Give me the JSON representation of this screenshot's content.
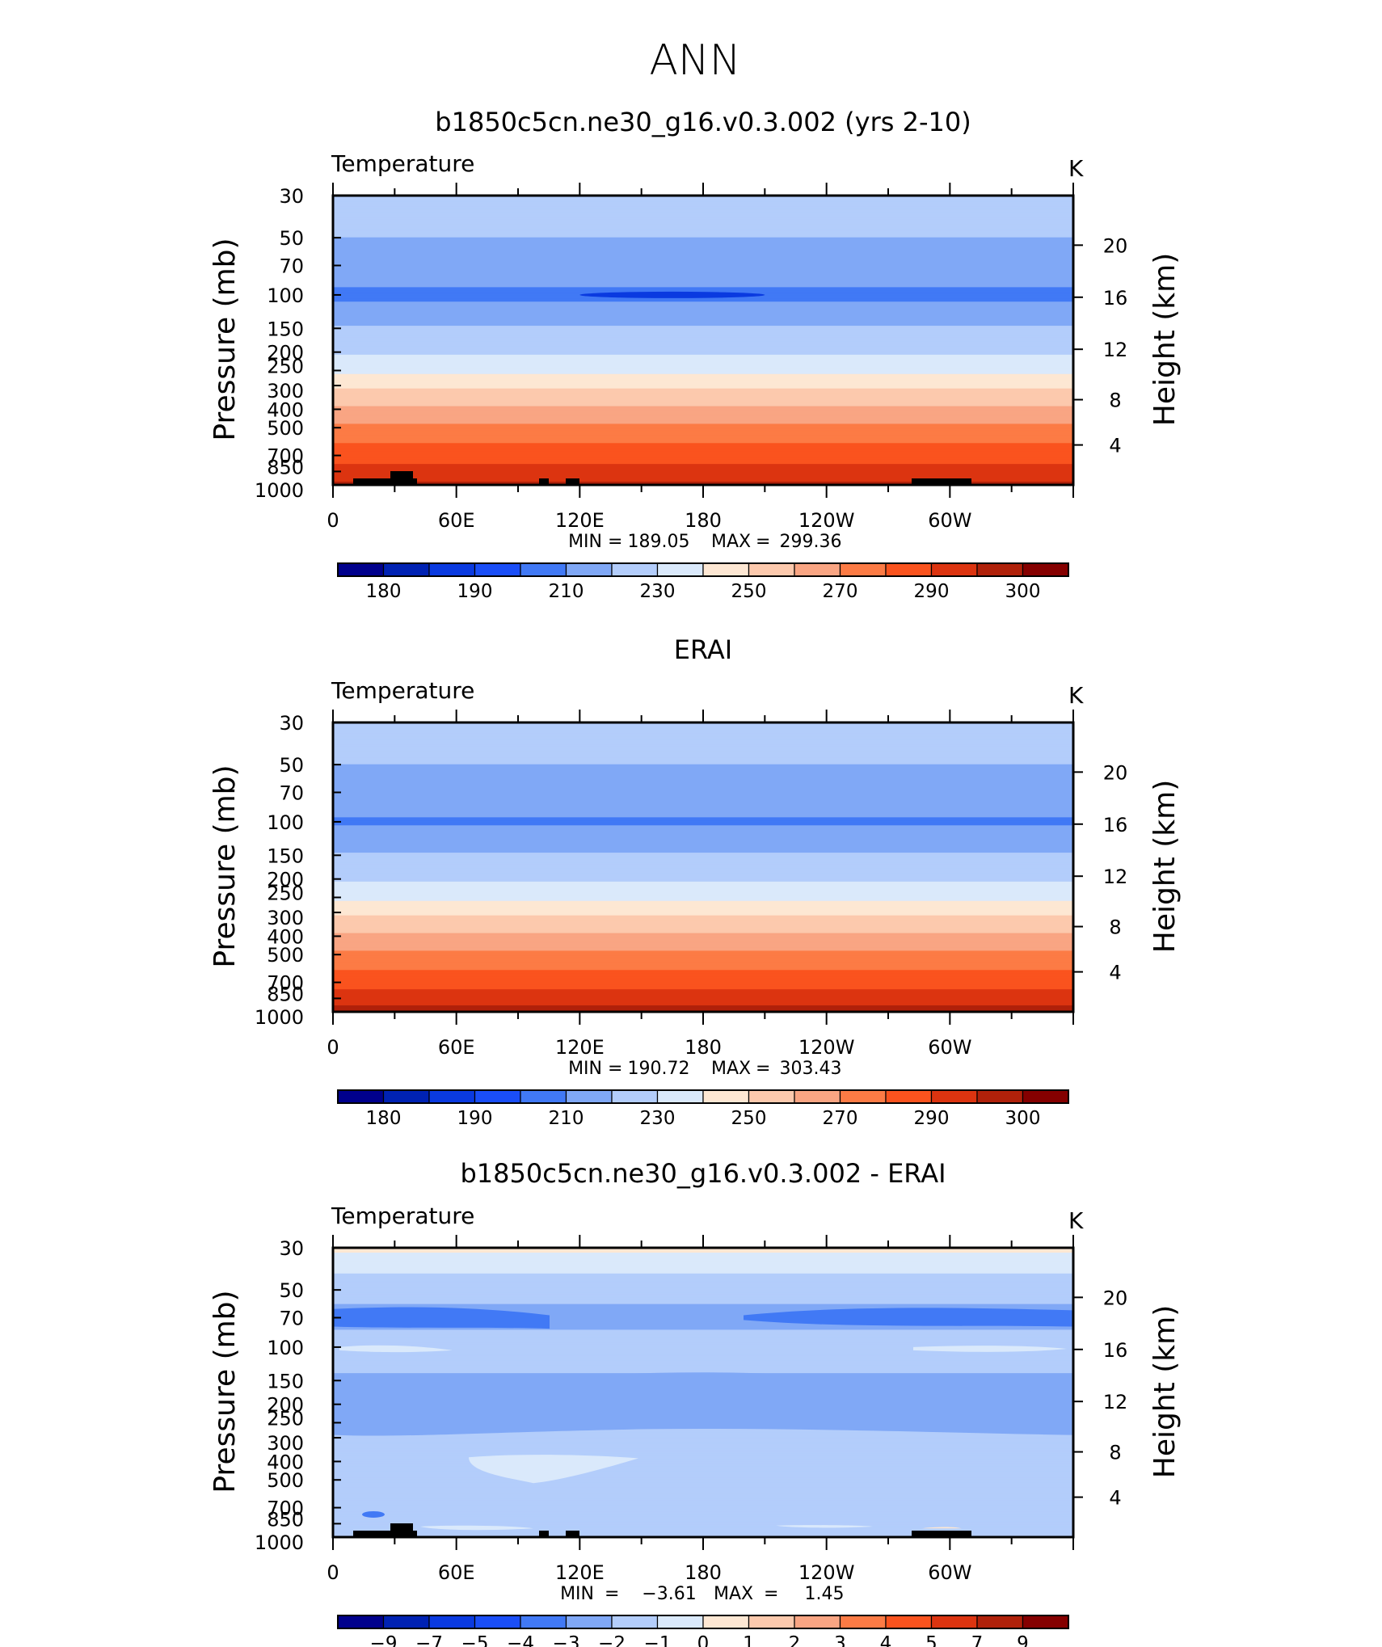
{
  "figure": {
    "title": "ANN"
  },
  "colors": {
    "temperature_palette": [
      "#00008c",
      "#0022b3",
      "#0a3ae0",
      "#1a4ef7",
      "#4179f5",
      "#80a8f6",
      "#b3cdfb",
      "#dae9fb",
      "#fde7d3",
      "#fcc9ad",
      "#f9a583",
      "#fc7b45",
      "#fa531e",
      "#dc3410",
      "#b0210a",
      "#850000"
    ],
    "difference_palette": [
      "#00008c",
      "#0022b3",
      "#0a3ae0",
      "#1a4ef7",
      "#4179f5",
      "#80a8f6",
      "#b3cdfb",
      "#dae9fb",
      "#fde7d3",
      "#fcc9ad",
      "#f9a583",
      "#fc7b45",
      "#fa531e",
      "#dc3410",
      "#b0210a",
      "#850000"
    ],
    "topography": "#000000"
  },
  "chart_data": [
    {
      "type": "heatmap",
      "subtitle": "b1850c5cn.ne30_g16.v0.3.002 (yrs 2-10)",
      "left_string": "Temperature",
      "right_string": "K",
      "ylabel": "Pressure (mb)",
      "ylabel_right": "Height (km)",
      "y_scale": "log",
      "x_ticks": [
        "0",
        "60E",
        "120E",
        "180",
        "120W",
        "60W"
      ],
      "y_ticks": [
        "30",
        "50",
        "70",
        "100",
        "150",
        "200",
        "250",
        "300",
        "400",
        "500",
        "700",
        "850",
        "1000"
      ],
      "y_right_ticks": [
        "20",
        "16",
        "12",
        "8",
        "4"
      ],
      "stats": {
        "min_label": "MIN",
        "min": "189.05",
        "max_label": "MAX",
        "max": "299.36"
      },
      "colorbar_labels": [
        "180",
        "190",
        "210",
        "230",
        "250",
        "270",
        "290",
        "300"
      ],
      "contour_levels": [
        175,
        180,
        185,
        190,
        200,
        210,
        220,
        230,
        240,
        250,
        260,
        270,
        280,
        290,
        295,
        300
      ],
      "profile": [
        {
          "p": 30,
          "t": 216
        },
        {
          "p": 40,
          "t": 214
        },
        {
          "p": 50,
          "t": 210
        },
        {
          "p": 70,
          "t": 205
        },
        {
          "p": 100,
          "t": 198
        },
        {
          "p": 130,
          "t": 205
        },
        {
          "p": 150,
          "t": 212
        },
        {
          "p": 200,
          "t": 219
        },
        {
          "p": 250,
          "t": 228
        },
        {
          "p": 300,
          "t": 238
        },
        {
          "p": 400,
          "t": 252
        },
        {
          "p": 500,
          "t": 262
        },
        {
          "p": 700,
          "t": 276
        },
        {
          "p": 850,
          "t": 284
        },
        {
          "p": 1000,
          "t": 292
        }
      ],
      "features": {
        "cold_core": {
          "lon": [
            120,
            210
          ],
          "p": 100,
          "t": 189
        },
        "topography": true
      }
    },
    {
      "type": "heatmap",
      "subtitle": "ERAI",
      "left_string": "Temperature",
      "right_string": "K",
      "ylabel": "Pressure (mb)",
      "ylabel_right": "Height (km)",
      "y_scale": "log",
      "x_ticks": [
        "0",
        "60E",
        "120E",
        "180",
        "120W",
        "60W"
      ],
      "y_ticks": [
        "30",
        "50",
        "70",
        "100",
        "150",
        "200",
        "250",
        "300",
        "400",
        "500",
        "700",
        "850",
        "1000"
      ],
      "y_right_ticks": [
        "20",
        "16",
        "12",
        "8",
        "4"
      ],
      "stats": {
        "min_label": "MIN",
        "min": "190.72",
        "max_label": "MAX",
        "max": "303.43"
      },
      "colorbar_labels": [
        "180",
        "190",
        "210",
        "230",
        "250",
        "270",
        "290",
        "300"
      ],
      "contour_levels": [
        175,
        180,
        185,
        190,
        200,
        210,
        220,
        230,
        240,
        250,
        260,
        270,
        280,
        290,
        295,
        300
      ],
      "profile": [
        {
          "p": 30,
          "t": 216
        },
        {
          "p": 40,
          "t": 214
        },
        {
          "p": 50,
          "t": 210
        },
        {
          "p": 70,
          "t": 205
        },
        {
          "p": 100,
          "t": 199
        },
        {
          "p": 130,
          "t": 205
        },
        {
          "p": 150,
          "t": 212
        },
        {
          "p": 200,
          "t": 219
        },
        {
          "p": 250,
          "t": 228
        },
        {
          "p": 300,
          "t": 238
        },
        {
          "p": 400,
          "t": 252
        },
        {
          "p": 500,
          "t": 262
        },
        {
          "p": 700,
          "t": 276
        },
        {
          "p": 850,
          "t": 286
        },
        {
          "p": 1000,
          "t": 294
        }
      ],
      "features": {
        "topography": false
      }
    },
    {
      "type": "heatmap",
      "subtitle": "b1850c5cn.ne30_g16.v0.3.002 - ERAI",
      "left_string": "Temperature",
      "right_string": "K",
      "ylabel": "Pressure (mb)",
      "ylabel_right": "Height (km)",
      "y_scale": "log",
      "x_ticks": [
        "0",
        "60E",
        "120E",
        "180",
        "120W",
        "60W"
      ],
      "y_ticks": [
        "30",
        "50",
        "70",
        "100",
        "150",
        "200",
        "250",
        "300",
        "400",
        "500",
        "700",
        "850",
        "1000"
      ],
      "y_right_ticks": [
        "20",
        "16",
        "12",
        "8",
        "4"
      ],
      "stats": {
        "min_label": "MIN",
        "min": "−3.61",
        "max_label": "MAX",
        "max": "1.45"
      },
      "colorbar_labels": [
        "−9",
        "−7",
        "−5",
        "−4",
        "−3",
        "−2",
        "−1",
        "0",
        "1",
        "2",
        "3",
        "4",
        "5",
        "7",
        "9"
      ],
      "contour_levels": [
        -9,
        -7,
        -5,
        -4,
        -3,
        -2,
        -1,
        0,
        1,
        2,
        3,
        4,
        5,
        7,
        9
      ],
      "profile": [
        {
          "p": 30,
          "t": 0.5
        },
        {
          "p": 34,
          "t": -0.5
        },
        {
          "p": 50,
          "t": -1.5
        },
        {
          "p": 70,
          "t": -2.5
        },
        {
          "p": 100,
          "t": -1.2
        },
        {
          "p": 150,
          "t": -2.2
        },
        {
          "p": 200,
          "t": -2.5
        },
        {
          "p": 250,
          "t": -1.8
        },
        {
          "p": 400,
          "t": -1.4
        },
        {
          "p": 700,
          "t": -1.6
        },
        {
          "p": 850,
          "t": -1.5
        },
        {
          "p": 1000,
          "t": -1.2
        }
      ],
      "features": {
        "topography": true
      }
    }
  ]
}
